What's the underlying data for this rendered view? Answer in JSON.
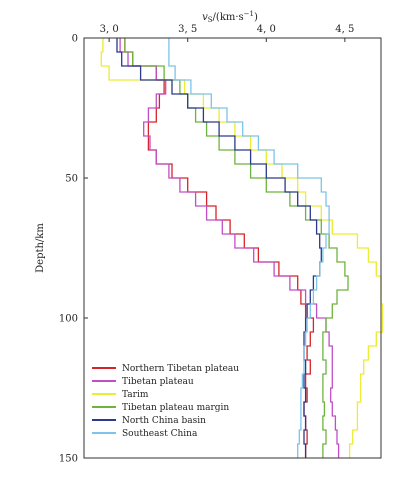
{
  "chart_data": {
    "type": "line",
    "title": "",
    "xlabel": "vS/(km·s⁻¹)",
    "ylabel": "Depth/km",
    "xlim": [
      2.84,
      4.73
    ],
    "ylim": [
      0,
      150
    ],
    "x_ticks": [
      "3, 0",
      "3, 5",
      "4, 0",
      "4, 5"
    ],
    "x_tick_values": [
      3.0,
      3.5,
      4.0,
      4.5
    ],
    "y_ticks": [
      "0",
      "50",
      "100",
      "150"
    ],
    "y_tick_values": [
      0,
      50,
      100,
      150
    ],
    "x_axis_position": "top",
    "legend_position": "bottom-left",
    "grid": false,
    "depth_boundaries": [
      0,
      5,
      10,
      15,
      20,
      25,
      30,
      35,
      40,
      45,
      50,
      55,
      60,
      65,
      70,
      75,
      80,
      85,
      90,
      95,
      100,
      105,
      110,
      115,
      120,
      125,
      130,
      135,
      140,
      145,
      150
    ],
    "series": [
      {
        "name": "Northern Tibetan plateau",
        "color": "#d6252a",
        "vs": [
          3.1,
          3.15,
          3.3,
          3.35,
          3.32,
          3.3,
          3.25,
          3.25,
          3.3,
          3.4,
          3.5,
          3.62,
          3.68,
          3.77,
          3.86,
          3.95,
          4.08,
          4.2,
          4.22,
          4.25,
          4.3,
          4.28,
          4.26,
          4.28,
          4.25,
          4.26,
          4.24,
          4.25,
          4.26,
          4.25
        ]
      },
      {
        "name": "Tibetan plateau",
        "color": "#c04fc6",
        "vs": [
          3.07,
          3.12,
          3.3,
          3.36,
          3.3,
          3.25,
          3.22,
          3.26,
          3.3,
          3.38,
          3.45,
          3.55,
          3.62,
          3.72,
          3.8,
          3.92,
          4.05,
          4.15,
          4.25,
          4.32,
          4.38,
          4.4,
          4.42,
          4.42,
          4.42,
          4.41,
          4.42,
          4.44,
          4.45,
          4.46
        ]
      },
      {
        "name": "Tarim",
        "color": "#ecec32",
        "vs": [
          2.96,
          2.95,
          3.0,
          3.48,
          3.6,
          3.7,
          3.8,
          3.9,
          4.0,
          4.1,
          4.2,
          4.25,
          4.35,
          4.42,
          4.58,
          4.65,
          4.7,
          4.73,
          4.73,
          4.74,
          4.74,
          4.7,
          4.65,
          4.62,
          4.6,
          4.6,
          4.58,
          4.58,
          4.55,
          4.53
        ]
      },
      {
        "name": "Tibetan plateau margin",
        "color": "#6db33f",
        "vs": [
          3.1,
          3.15,
          3.35,
          3.45,
          3.5,
          3.55,
          3.62,
          3.7,
          3.8,
          3.9,
          4.0,
          4.15,
          4.25,
          4.35,
          4.4,
          4.45,
          4.5,
          4.52,
          4.45,
          4.42,
          4.38,
          4.36,
          4.36,
          4.38,
          4.36,
          4.36,
          4.37,
          4.36,
          4.38,
          4.36
        ]
      },
      {
        "name": "North China basin",
        "color": "#2b3a8c",
        "vs": [
          3.05,
          3.08,
          3.2,
          3.4,
          3.5,
          3.6,
          3.7,
          3.8,
          3.9,
          4.0,
          4.12,
          4.2,
          4.28,
          4.32,
          4.34,
          4.35,
          4.34,
          4.3,
          4.28,
          4.26,
          4.25,
          4.24,
          4.24,
          4.25,
          4.24,
          4.25,
          4.24,
          4.25,
          4.24,
          4.25
        ]
      },
      {
        "name": "Southeast China",
        "color": "#7ec3e8",
        "vs": [
          3.38,
          3.38,
          3.42,
          3.52,
          3.65,
          3.75,
          3.85,
          3.95,
          4.05,
          4.2,
          4.35,
          4.38,
          4.4,
          4.4,
          4.38,
          4.36,
          4.34,
          4.32,
          4.3,
          4.28,
          4.26,
          4.25,
          4.24,
          4.24,
          4.23,
          4.22,
          4.22,
          4.22,
          4.21,
          4.2
        ]
      }
    ]
  }
}
